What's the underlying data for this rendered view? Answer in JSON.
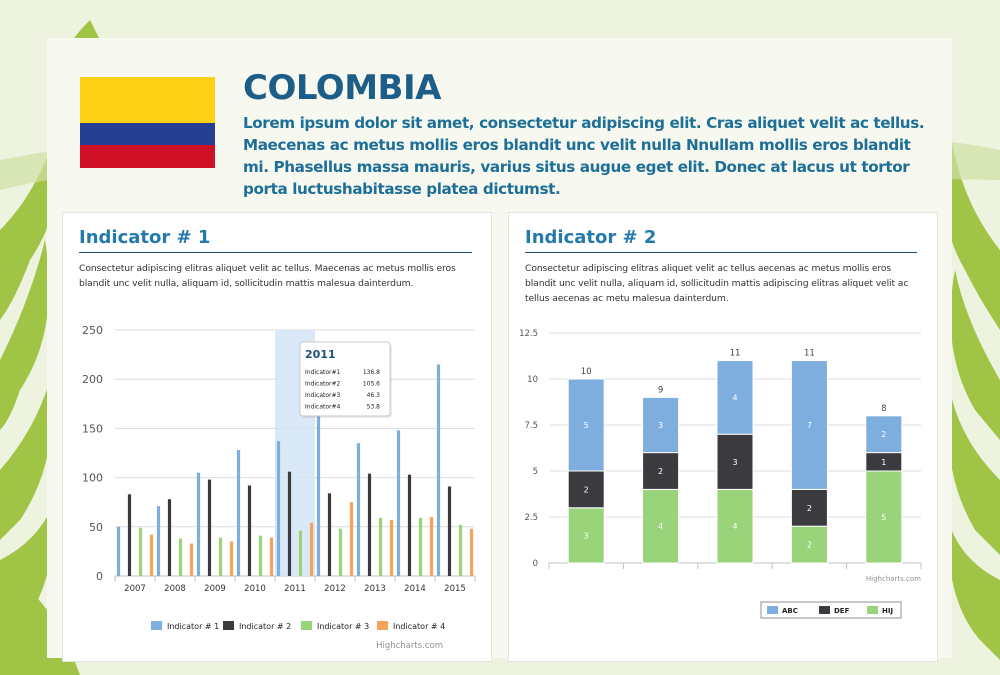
{
  "header": {
    "country": "COLOMBIA",
    "intro": "Lorem ipsum dolor sit amet, consectetur adipiscing elit. Cras aliquet velit ac tellus. Maecenas ac metus mollis eros blandit unc velit nulla Nnullam mollis eros blandit mi. Phasellus massa mauris, varius situs augue eget elit. Donec at lacus ut tortor porta luctushabitasse platea dictumst.",
    "flag_colors": [
      "#fcd116",
      "#263f91",
      "#ce1126"
    ]
  },
  "indicator1": {
    "title": "Indicator # 1",
    "text": "Consectetur adipiscing elitras aliquet velit ac tellus. Maecenas ac metus mollis eros blandit unc velit nulla, aliquam id, sollicitudin mattis malesua dainterdum.",
    "credit": "Highcharts.com"
  },
  "indicator2": {
    "title": "Indicator # 2",
    "text": "Consectetur adipiscing elitras aliquet velit ac tellus aecenas ac metus mollis eros blandit unc velit nulla, aliquam id, sollicitudin mattis adipiscing elitras aliquet velit ac tellus aecenas ac metu malesua dainterdum.",
    "credit": "Highcharts.com"
  },
  "chart_data": [
    {
      "type": "bar",
      "categories": [
        "2007",
        "2008",
        "2009",
        "2010",
        "2011",
        "2012",
        "2013",
        "2014",
        "2015"
      ],
      "series": [
        {
          "name": "Indicator # 1",
          "color": "#7eaedd",
          "values": [
            50,
            71,
            105,
            128,
            137,
            170,
            135,
            148,
            215
          ]
        },
        {
          "name": "Indicator # 2",
          "color": "#3b3b3f",
          "values": [
            83,
            78,
            98,
            92,
            106,
            84,
            104,
            103,
            91
          ]
        },
        {
          "name": "Indicator # 3",
          "color": "#99d37a",
          "values": [
            49,
            38,
            39,
            41,
            46,
            48,
            59,
            59,
            52
          ]
        },
        {
          "name": "Indicator # 4",
          "color": "#f5a25d",
          "values": [
            42,
            33,
            35,
            39,
            54,
            75,
            57,
            60,
            48
          ]
        }
      ],
      "ylim": [
        0,
        250
      ],
      "yticks": [
        0,
        50,
        100,
        150,
        200,
        250
      ],
      "grid": true,
      "legend": "bottom",
      "highlight": "2011",
      "tooltip": {
        "title": "2011",
        "rows": [
          {
            "label": "Indicator#1",
            "value": "136.8"
          },
          {
            "label": "Indicator#2",
            "value": "105.6"
          },
          {
            "label": "Indicator#3",
            "value": "46.3"
          },
          {
            "label": "Indicator#4",
            "value": "53.8"
          }
        ]
      }
    },
    {
      "type": "bar",
      "stacked": true,
      "categories": [
        "",
        "",
        "",
        "",
        ""
      ],
      "series": [
        {
          "name": "ABC",
          "color": "#7eaedd",
          "values": [
            5,
            3,
            4,
            7,
            2
          ]
        },
        {
          "name": "DEF",
          "color": "#3b3b3f",
          "values": [
            2,
            2,
            3,
            2,
            1
          ]
        },
        {
          "name": "HIJ",
          "color": "#99d37a",
          "values": [
            3,
            4,
            4,
            2,
            5
          ]
        }
      ],
      "totals": [
        10,
        9,
        11,
        11,
        8
      ],
      "ylim": [
        0,
        12.5
      ],
      "yticks": [
        "0",
        "2.5",
        "5",
        "7.5",
        "10",
        "12.5"
      ],
      "grid": true,
      "legend": "bottom-right"
    }
  ]
}
